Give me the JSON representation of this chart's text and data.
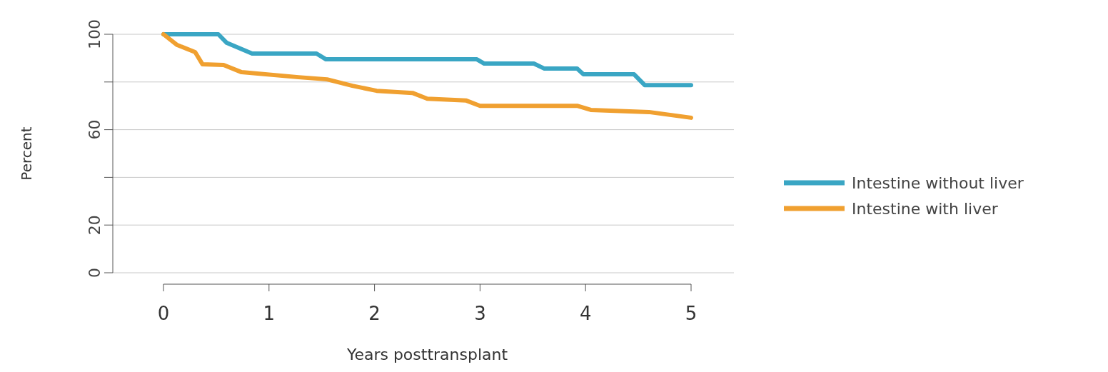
{
  "chart_data": {
    "type": "line",
    "xlabel": "Years posttransplant",
    "ylabel": "Percent",
    "xlim": [
      0,
      5
    ],
    "xticks": [
      0,
      1,
      2,
      3,
      4,
      5
    ],
    "ylim": [
      0,
      100
    ],
    "yticks": [
      0,
      20,
      {
        "value": 40,
        "label": null
      },
      60,
      {
        "value": 80,
        "label": null
      },
      100
    ],
    "grid": "y",
    "legend": "right",
    "marker": "none",
    "line_style": "solid",
    "series": [
      {
        "name": "Intestine without liver",
        "color": "#3aa6c4",
        "x": [
          0,
          0.52,
          0.6,
          0.84,
          1.45,
          1.54,
          2.97,
          3.04,
          3.51,
          3.61,
          3.92,
          3.98,
          4.46,
          4.56,
          5
        ],
        "values": [
          100,
          100,
          96.4,
          91.9,
          91.9,
          89.5,
          89.5,
          87.7,
          87.7,
          85.6,
          85.6,
          83.2,
          83.2,
          78.7,
          78.7
        ]
      },
      {
        "name": "Intestine with liver",
        "color": "#f0a030",
        "x": [
          0,
          0.13,
          0.3,
          0.37,
          0.57,
          0.74,
          1.28,
          1.55,
          1.79,
          2.02,
          2.36,
          2.5,
          2.87,
          3.0,
          3.92,
          4.05,
          4.6,
          5
        ],
        "values": [
          100,
          95.5,
          92.5,
          87.4,
          87.1,
          84.1,
          82,
          81.1,
          78.4,
          76.3,
          75.4,
          73,
          72.2,
          70,
          70,
          68.3,
          67.4,
          65
        ]
      }
    ]
  }
}
